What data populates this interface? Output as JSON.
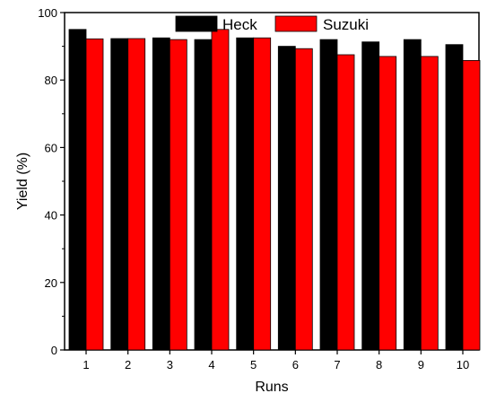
{
  "chart_data": {
    "type": "bar",
    "categories": [
      "1",
      "2",
      "3",
      "4",
      "5",
      "6",
      "7",
      "8",
      "9",
      "10"
    ],
    "series": [
      {
        "name": "Heck",
        "color": "#000000",
        "values": [
          95,
          92.3,
          92.5,
          92,
          92.5,
          90,
          92,
          91.3,
          92,
          90.5
        ]
      },
      {
        "name": "Suzuki",
        "color": "#ff0000",
        "values": [
          92.2,
          92.3,
          92,
          95,
          92.5,
          89.3,
          87.5,
          87,
          87,
          85.8
        ]
      }
    ],
    "xlabel": "Runs",
    "ylabel": "Yield (%)",
    "ylim": [
      0,
      100
    ],
    "yticks": [
      0,
      20,
      40,
      60,
      80,
      100
    ],
    "grid": false,
    "legend_position": "top-center"
  }
}
